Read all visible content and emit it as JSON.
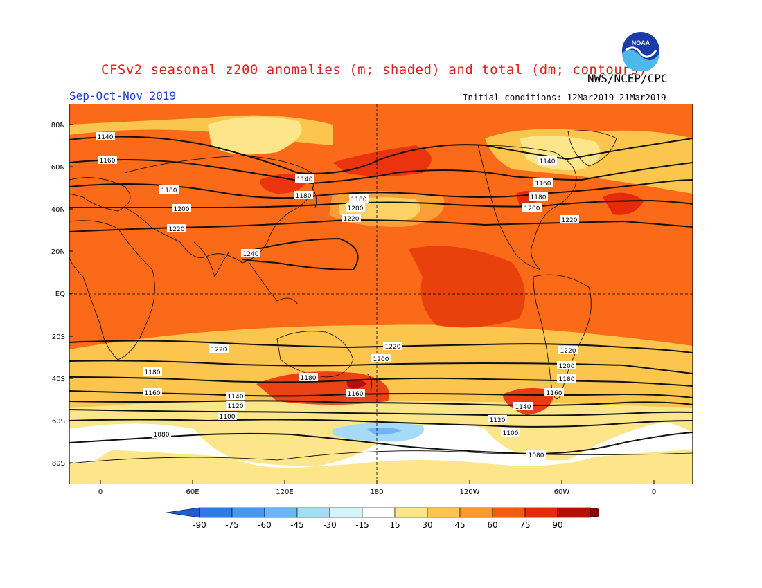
{
  "header": {
    "title": "CFSv2 seasonal z200 anomalies (m; shaded) and total (dm; contours)",
    "agency": "NWS/NCEP/CPC",
    "season": "Sep-Oct-Nov 2019",
    "initial_conditions": "Initial conditions: 12Mar2019-21Mar2019",
    "logo_text": "NOAA"
  },
  "map": {
    "lat_labels": [
      "80N",
      "60N",
      "40N",
      "20N",
      "EQ",
      "20S",
      "40S",
      "60S",
      "80S"
    ],
    "lon_labels": [
      "0",
      "60E",
      "120E",
      "180",
      "120W",
      "60W",
      "0"
    ],
    "contour_labels": [
      "1140",
      "1160",
      "1180",
      "1200",
      "1220",
      "1240",
      "1140",
      "1180",
      "1180",
      "1200",
      "1220",
      "1140",
      "1160",
      "1180",
      "1200",
      "1220",
      "1220",
      "1200",
      "1160",
      "1220",
      "1200",
      "1180",
      "1140",
      "1120",
      "1100",
      "1080",
      "1200",
      "1180",
      "1160",
      "1120",
      "1100",
      "1080",
      "1220",
      "1200",
      "1180",
      "1160",
      "1140"
    ]
  },
  "colorbar": {
    "labels": [
      "-90",
      "-75",
      "-60",
      "-45",
      "-30",
      "-15",
      "15",
      "30",
      "45",
      "60",
      "75",
      "90"
    ],
    "colors": [
      "#1a5fd6",
      "#2f7be6",
      "#4a97ef",
      "#6fb5f5",
      "#a6dbf8",
      "#d4f4fb",
      "#ffffff",
      "#fde68a",
      "#fbc54e",
      "#fb9a2a",
      "#f75b10",
      "#e82a0c",
      "#b80d0d",
      "#8a0606"
    ]
  }
}
